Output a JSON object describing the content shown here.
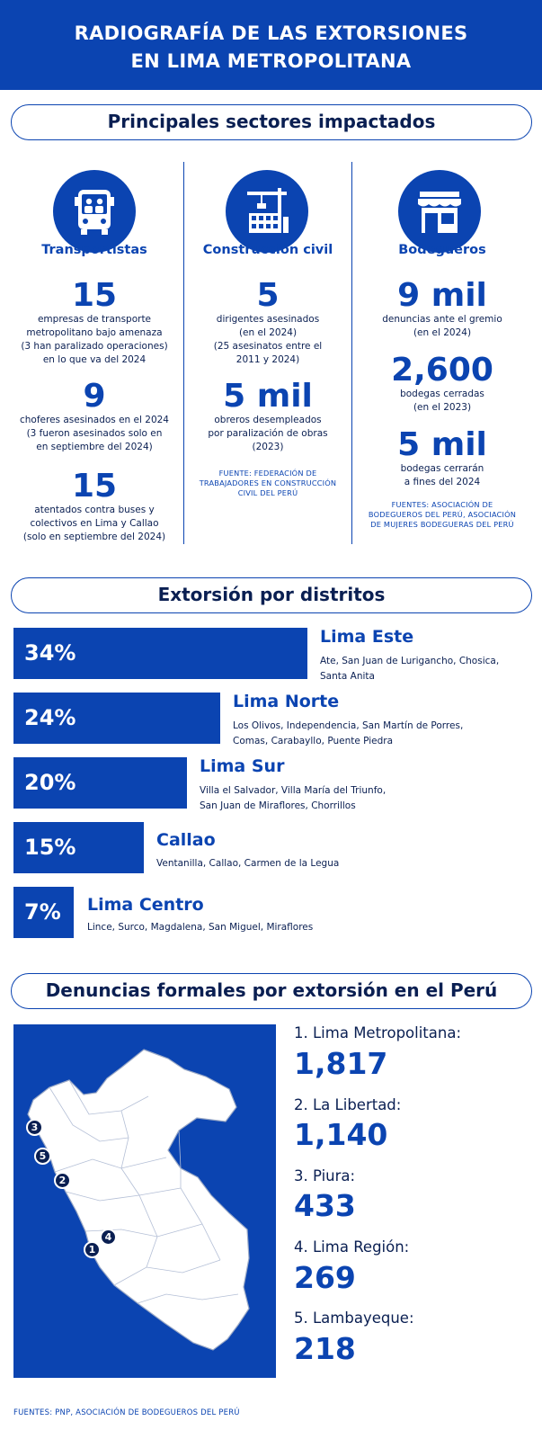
{
  "header": {
    "title_line1": "RADIOGRAFÍA DE LAS EXTORSIONES",
    "title_line2": "EN LIMA METROPOLITANA"
  },
  "sectors": {
    "heading": "Principales sectores impactados",
    "transportistas": {
      "icon": "bus-icon",
      "title": "Transportistas",
      "stats": [
        {
          "value": "15",
          "desc": [
            "empresas de transporte",
            "metropolitano bajo amenaza",
            "(3 han paralizado operaciones)",
            "en lo que va del 2024"
          ]
        },
        {
          "value": "9",
          "desc": [
            "choferes asesinados en el 2024",
            "(3 fueron asesinados solo en",
            "en septiembre del 2024)"
          ]
        },
        {
          "value": "15",
          "desc": [
            "atentados contra buses y",
            "colectivos en Lima y Callao",
            "(solo en septiembre del 2024)"
          ]
        }
      ]
    },
    "construccion": {
      "icon": "construction-crane-icon",
      "title": "Construcción civil",
      "stats": [
        {
          "value": "5",
          "desc": [
            "dirigentes asesinados",
            "(en el 2024)",
            "(25 asesinatos entre el",
            "2011 y 2024)"
          ]
        },
        {
          "value": "5 mil",
          "desc": [
            "obreros desempleados",
            "por paralización de obras",
            "(2023)"
          ]
        }
      ],
      "source": [
        "FUENTE: FEDERACIÓN DE",
        "TRABAJADORES EN CONSTRUCCIÓN",
        "CIVIL DEL PERÚ"
      ]
    },
    "bodegueros": {
      "icon": "store-icon",
      "title": "Bodegueros",
      "stats": [
        {
          "value": "9 mil",
          "desc": [
            "denuncias ante el gremio",
            "(en el 2024)"
          ]
        },
        {
          "value": "2,600",
          "desc": [
            "bodegas cerradas",
            "(en el 2023)"
          ]
        },
        {
          "value": "5 mil",
          "desc": [
            "bodegas cerrarán",
            "a fines del 2024"
          ]
        }
      ],
      "source": [
        "FUENTES: ASOCIACIÓN DE",
        "BODEGUEROS DEL PERÚ, ASOCIACIÓN",
        "DE MUJERES BODEGUERAS DEL PERÚ"
      ]
    }
  },
  "districts": {
    "heading": "Extorsión por distritos",
    "items": [
      {
        "pct_label": "34%",
        "pct": 34,
        "region": "Lima Este",
        "lines": [
          "Ate, San Juan de Lurigancho, Chosica,",
          "Santa Anita"
        ]
      },
      {
        "pct_label": "24%",
        "pct": 24,
        "region": "Lima Norte",
        "lines": [
          "Los Olivos, Independencia, San Martín de Porres,",
          "Comas, Carabayllo, Puente Piedra"
        ]
      },
      {
        "pct_label": "20%",
        "pct": 20,
        "region": "Lima Sur",
        "lines": [
          "Villa el Salvador, Villa María del Triunfo,",
          "San Juan de Miraflores, Chorrillos"
        ]
      },
      {
        "pct_label": "15%",
        "pct": 15,
        "region": "Callao",
        "lines": [
          "Ventanilla, Callao, Carmen de la Legua"
        ]
      },
      {
        "pct_label": "7%",
        "pct": 7,
        "region": "Lima Centro",
        "lines": [
          "Lince, Surco, Magdalena, San Miguel, Miraflores"
        ]
      }
    ]
  },
  "complaints": {
    "heading": "Denuncias formales por extorsión en el Perú",
    "ranking": [
      {
        "label": "1. Lima Metropolitana:",
        "value": "1,817"
      },
      {
        "label": "2. La Libertad:",
        "value": "1,140"
      },
      {
        "label": "3. Piura:",
        "value": "433"
      },
      {
        "label": "4. Lima Región:",
        "value": "269"
      },
      {
        "label": "5. Lambayeque:",
        "value": "218"
      }
    ],
    "map_markers": [
      "1",
      "2",
      "3",
      "4",
      "5"
    ]
  },
  "footer": {
    "source": "FUENTES: PNP, ASOCIACIÓN DE BODEGUEROS DEL PERÚ"
  },
  "colors": {
    "primary_blue": "#0b44b1",
    "dark_navy": "#0a1f52",
    "white": "#ffffff"
  }
}
